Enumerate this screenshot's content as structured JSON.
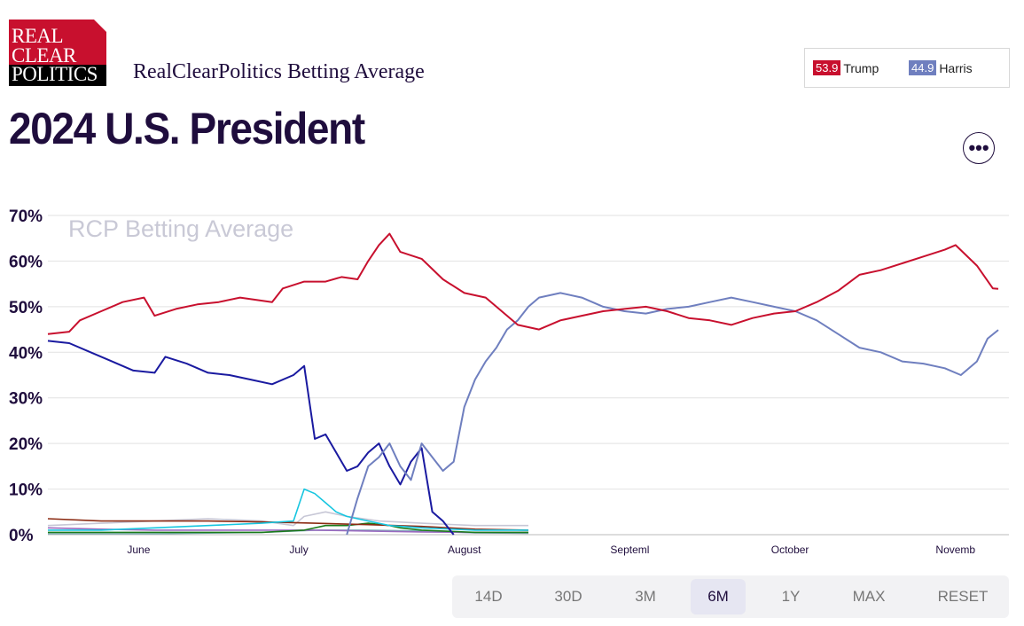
{
  "logo": {
    "line1": "REAL",
    "line2": "CLEAR",
    "line3": "POLITICS"
  },
  "header": {
    "subtitle": "RealClearPolitics Betting Average",
    "title": "2024 U.S. President"
  },
  "legend": {
    "items": [
      {
        "value": "53.9",
        "name": "Trump",
        "color": "#c8102e"
      },
      {
        "value": "44.9",
        "name": "Harris",
        "color": "#6f7fbf"
      }
    ]
  },
  "more_button": {
    "label": "•••"
  },
  "range_buttons": {
    "labels": [
      "14D",
      "30D",
      "3M",
      "6M",
      "1Y",
      "MAX",
      "RESET"
    ],
    "active": "6M"
  },
  "chart_data": {
    "type": "line",
    "watermark": "RCP Betting Average",
    "y_ticks": [
      "0%",
      "10%",
      "20%",
      "30%",
      "40%",
      "50%",
      "60%",
      "70%"
    ],
    "ylim": [
      0,
      70
    ],
    "x_ticks": [
      "June",
      "July",
      "August",
      "Septeml",
      "October",
      "Novemb"
    ],
    "x_range_days": [
      0,
      180
    ],
    "x_tick_days": [
      17,
      47,
      78,
      109,
      139,
      170
    ],
    "grid": true,
    "series": [
      {
        "name": "Trump",
        "color": "#c8102e",
        "points": [
          [
            0,
            44
          ],
          [
            4,
            44.5
          ],
          [
            6,
            47
          ],
          [
            10,
            49
          ],
          [
            14,
            51
          ],
          [
            18,
            52
          ],
          [
            20,
            48
          ],
          [
            24,
            49.5
          ],
          [
            28,
            50.5
          ],
          [
            32,
            51
          ],
          [
            36,
            52
          ],
          [
            42,
            51
          ],
          [
            44,
            54
          ],
          [
            48,
            55.5
          ],
          [
            52,
            55.5
          ],
          [
            55,
            56.5
          ],
          [
            58,
            56
          ],
          [
            60,
            60
          ],
          [
            62,
            63.5
          ],
          [
            64,
            66
          ],
          [
            66,
            62
          ],
          [
            70,
            60.5
          ],
          [
            74,
            56
          ],
          [
            78,
            53
          ],
          [
            82,
            52
          ],
          [
            84,
            50
          ],
          [
            88,
            46
          ],
          [
            92,
            45
          ],
          [
            96,
            47
          ],
          [
            100,
            48
          ],
          [
            104,
            49
          ],
          [
            108,
            49.5
          ],
          [
            112,
            50
          ],
          [
            116,
            49
          ],
          [
            120,
            47.5
          ],
          [
            124,
            47
          ],
          [
            128,
            46
          ],
          [
            132,
            47.5
          ],
          [
            136,
            48.5
          ],
          [
            140,
            49
          ],
          [
            144,
            51
          ],
          [
            148,
            53.5
          ],
          [
            152,
            57
          ],
          [
            156,
            58
          ],
          [
            160,
            59.5
          ],
          [
            164,
            61
          ],
          [
            168,
            62.5
          ],
          [
            170,
            63.5
          ],
          [
            174,
            59
          ],
          [
            177,
            54
          ],
          [
            178,
            53.9
          ]
        ]
      },
      {
        "name": "Harris",
        "color": "#6f7fbf",
        "points": [
          [
            56,
            0
          ],
          [
            58,
            8
          ],
          [
            60,
            15
          ],
          [
            62,
            17
          ],
          [
            64,
            20
          ],
          [
            66,
            15
          ],
          [
            68,
            12
          ],
          [
            70,
            20
          ],
          [
            72,
            17
          ],
          [
            74,
            14
          ],
          [
            76,
            16
          ],
          [
            78,
            28
          ],
          [
            80,
            34
          ],
          [
            82,
            38
          ],
          [
            84,
            41
          ],
          [
            86,
            45
          ],
          [
            88,
            47
          ],
          [
            90,
            50
          ],
          [
            92,
            52
          ],
          [
            96,
            53
          ],
          [
            100,
            52
          ],
          [
            104,
            50
          ],
          [
            108,
            49
          ],
          [
            112,
            48.5
          ],
          [
            116,
            49.5
          ],
          [
            120,
            50
          ],
          [
            124,
            51
          ],
          [
            128,
            52
          ],
          [
            132,
            51
          ],
          [
            136,
            50
          ],
          [
            140,
            49
          ],
          [
            144,
            47
          ],
          [
            148,
            44
          ],
          [
            152,
            41
          ],
          [
            156,
            40
          ],
          [
            160,
            38
          ],
          [
            164,
            37.5
          ],
          [
            168,
            36.5
          ],
          [
            171,
            35
          ],
          [
            174,
            38
          ],
          [
            176,
            43
          ],
          [
            178,
            44.9
          ]
        ]
      },
      {
        "name": "",
        "color": "#1a1aa0",
        "points": [
          [
            0,
            42.5
          ],
          [
            4,
            42
          ],
          [
            8,
            40
          ],
          [
            12,
            38
          ],
          [
            16,
            36
          ],
          [
            20,
            35.5
          ],
          [
            22,
            39
          ],
          [
            26,
            37.5
          ],
          [
            30,
            35.5
          ],
          [
            34,
            35
          ],
          [
            38,
            34
          ],
          [
            42,
            33
          ],
          [
            46,
            35
          ],
          [
            48,
            37
          ],
          [
            50,
            21
          ],
          [
            52,
            22
          ],
          [
            54,
            18
          ],
          [
            56,
            14
          ],
          [
            58,
            15
          ],
          [
            60,
            18
          ],
          [
            62,
            20
          ],
          [
            64,
            15
          ],
          [
            66,
            11
          ],
          [
            68,
            16
          ],
          [
            70,
            19
          ],
          [
            72,
            5
          ],
          [
            74,
            3
          ],
          [
            76,
            0
          ]
        ]
      },
      {
        "name": "",
        "color": "#17c6e0",
        "points": [
          [
            0,
            1
          ],
          [
            10,
            1
          ],
          [
            20,
            1.5
          ],
          [
            30,
            2
          ],
          [
            40,
            2.5
          ],
          [
            46,
            3
          ],
          [
            48,
            10
          ],
          [
            50,
            9
          ],
          [
            52,
            7
          ],
          [
            54,
            5
          ],
          [
            56,
            4
          ],
          [
            60,
            3
          ],
          [
            64,
            2
          ],
          [
            70,
            1.5
          ],
          [
            80,
            1
          ],
          [
            90,
            1
          ]
        ]
      },
      {
        "name": "",
        "color": "#8b2a12",
        "points": [
          [
            0,
            3.5
          ],
          [
            10,
            3
          ],
          [
            20,
            3
          ],
          [
            30,
            3
          ],
          [
            40,
            2.8
          ],
          [
            50,
            2.5
          ],
          [
            60,
            2.2
          ],
          [
            70,
            1.8
          ],
          [
            80,
            1.2
          ],
          [
            90,
            1
          ]
        ]
      },
      {
        "name": "",
        "color": "#c7c7d6",
        "points": [
          [
            0,
            2
          ],
          [
            10,
            2.5
          ],
          [
            20,
            3
          ],
          [
            30,
            3.5
          ],
          [
            40,
            3
          ],
          [
            46,
            2
          ],
          [
            48,
            4
          ],
          [
            52,
            5
          ],
          [
            56,
            4
          ],
          [
            62,
            3
          ],
          [
            70,
            2.5
          ],
          [
            80,
            2
          ],
          [
            90,
            2
          ]
        ]
      },
      {
        "name": "",
        "color": "#1a7a1a",
        "points": [
          [
            0,
            0.5
          ],
          [
            20,
            0.5
          ],
          [
            40,
            0.5
          ],
          [
            48,
            1
          ],
          [
            52,
            2
          ],
          [
            56,
            2
          ],
          [
            60,
            2.5
          ],
          [
            64,
            2
          ],
          [
            66,
            1.5
          ],
          [
            70,
            1
          ],
          [
            80,
            0.5
          ],
          [
            90,
            0.5
          ]
        ]
      },
      {
        "name": "",
        "color": "#9a6ac0",
        "points": [
          [
            0,
            1.5
          ],
          [
            10,
            1.2
          ],
          [
            20,
            1
          ],
          [
            30,
            1
          ],
          [
            40,
            1
          ],
          [
            50,
            1
          ],
          [
            60,
            0.8
          ],
          [
            70,
            0.6
          ],
          [
            80,
            0.5
          ],
          [
            90,
            0.5
          ]
        ]
      },
      {
        "name": "",
        "color": "#7fb0b8",
        "points": [
          [
            0,
            0.2
          ],
          [
            20,
            0.2
          ],
          [
            40,
            0.5
          ],
          [
            50,
            1
          ],
          [
            60,
            1
          ],
          [
            70,
            0.8
          ],
          [
            80,
            0.4
          ],
          [
            90,
            0.3
          ]
        ]
      }
    ]
  }
}
